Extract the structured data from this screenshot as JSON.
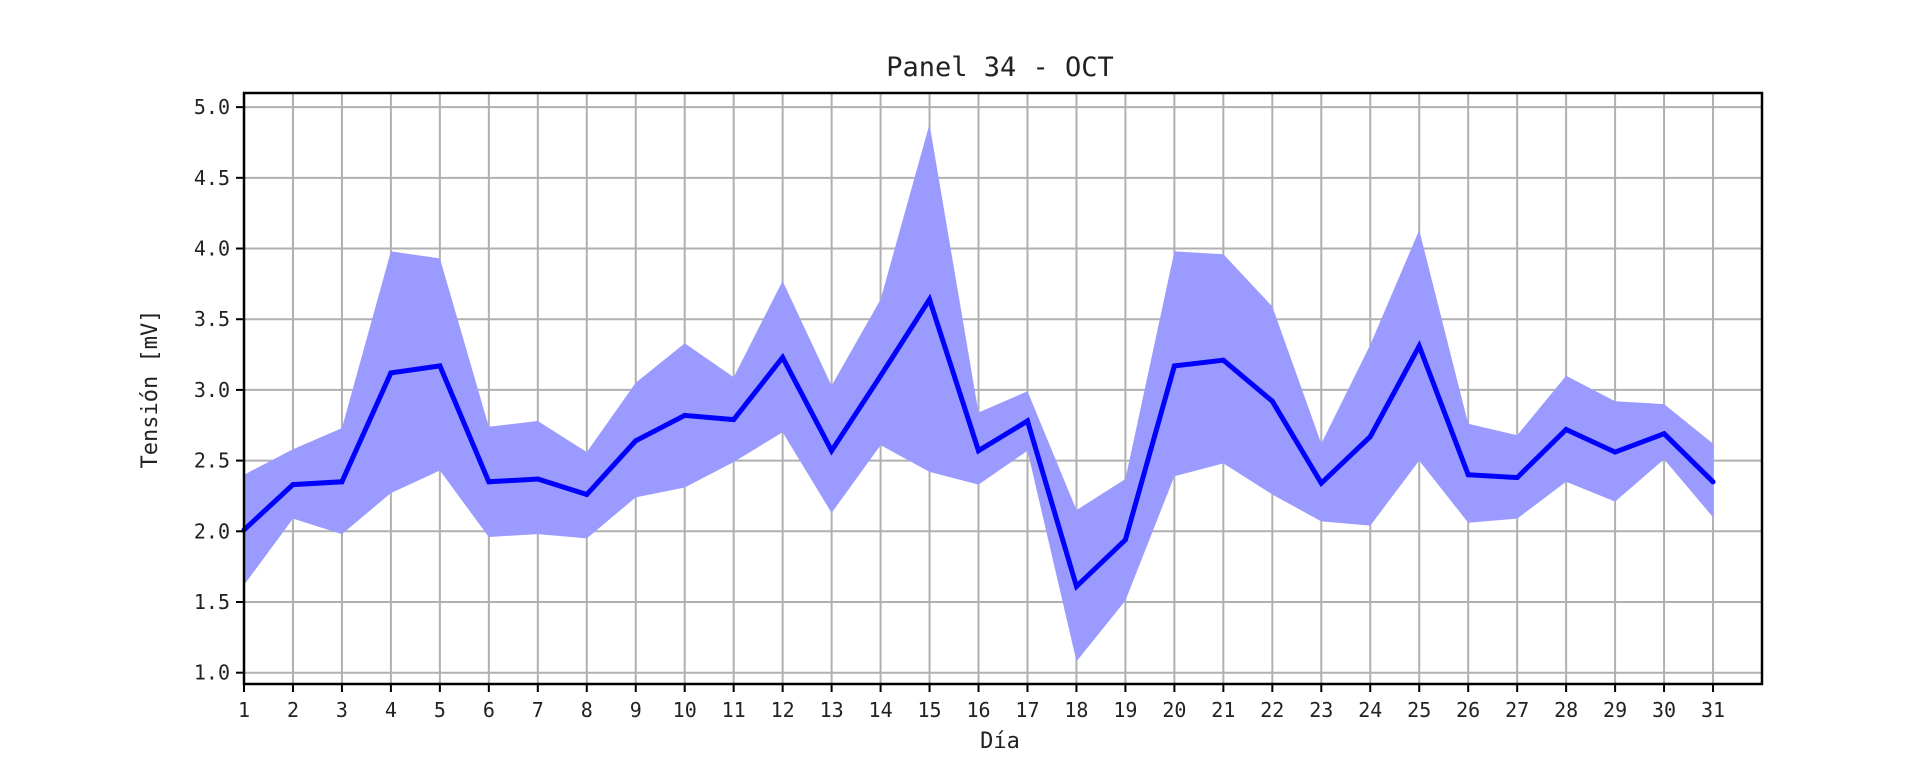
{
  "chart_data": {
    "type": "line",
    "title": "Panel 34 - OCT",
    "xlabel": "Día",
    "ylabel": "Tensión [mV]",
    "x": [
      1,
      2,
      3,
      4,
      5,
      6,
      7,
      8,
      9,
      10,
      11,
      12,
      13,
      14,
      15,
      16,
      17,
      18,
      19,
      20,
      21,
      22,
      23,
      24,
      25,
      26,
      27,
      28,
      29,
      30,
      31
    ],
    "xlim": [
      1,
      32
    ],
    "ylim": [
      0.92,
      5.1
    ],
    "yticks": [
      1.0,
      1.5,
      2.0,
      2.5,
      3.0,
      3.5,
      4.0,
      4.5,
      5.0
    ],
    "ytick_labels": [
      "1.0",
      "1.5",
      "2.0",
      "2.5",
      "3.0",
      "3.5",
      "4.0",
      "4.5",
      "5.0"
    ],
    "xtick_labels": [
      "1",
      "2",
      "3",
      "4",
      "5",
      "6",
      "7",
      "8",
      "9",
      "10",
      "11",
      "12",
      "13",
      "14",
      "15",
      "16",
      "17",
      "18",
      "19",
      "20",
      "21",
      "22",
      "23",
      "24",
      "25",
      "26",
      "27",
      "28",
      "29",
      "30",
      "31"
    ],
    "grid": true,
    "series": [
      {
        "values": [
          2.01,
          2.33,
          2.35,
          3.12,
          3.17,
          2.35,
          2.37,
          2.26,
          2.64,
          2.82,
          2.79,
          3.23,
          2.57,
          3.1,
          3.64,
          2.57,
          2.78,
          1.61,
          1.94,
          3.17,
          3.21,
          2.92,
          2.34,
          2.67,
          3.31,
          2.4,
          2.38,
          2.72,
          2.56,
          2.69,
          2.35
        ],
        "upper": [
          2.4,
          2.58,
          2.73,
          3.98,
          3.93,
          2.74,
          2.78,
          2.56,
          3.05,
          3.33,
          3.09,
          3.77,
          3.03,
          3.64,
          4.88,
          2.84,
          2.99,
          2.15,
          2.37,
          3.98,
          3.96,
          3.59,
          2.62,
          3.32,
          4.13,
          2.76,
          2.68,
          3.1,
          2.92,
          2.9,
          2.62
        ],
        "lower": [
          1.62,
          2.09,
          1.98,
          2.27,
          2.43,
          1.96,
          1.98,
          1.95,
          2.24,
          2.31,
          2.49,
          2.7,
          2.13,
          2.61,
          2.42,
          2.33,
          2.57,
          1.08,
          1.51,
          2.39,
          2.48,
          2.26,
          2.07,
          2.04,
          2.5,
          2.06,
          2.09,
          2.35,
          2.21,
          2.51,
          2.1
        ]
      }
    ],
    "colors": {
      "line": "#0000ff",
      "band": "#9b9bff",
      "grid": "#b0b0b0",
      "frame": "#000000"
    }
  }
}
